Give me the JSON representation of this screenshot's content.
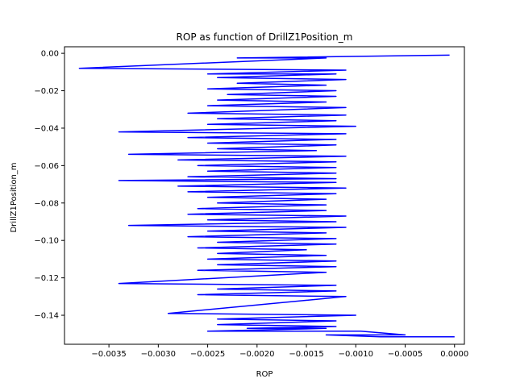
{
  "chart_data": {
    "type": "line",
    "title": "ROP as function of DrillZ1Position_m",
    "xlabel": "ROP",
    "ylabel": "DrillZ1Position_m",
    "xlim": [
      -0.00395,
      0.0001
    ],
    "ylim": [
      -0.1555,
      0.0035
    ],
    "grid": false,
    "line_color": "#0000ff",
    "x_ticks": [
      {
        "value": -0.0035,
        "label": "−0.0035"
      },
      {
        "value": -0.003,
        "label": "−0.0030"
      },
      {
        "value": -0.0025,
        "label": "−0.0025"
      },
      {
        "value": -0.002,
        "label": "−0.0020"
      },
      {
        "value": -0.0015,
        "label": "−0.0015"
      },
      {
        "value": -0.001,
        "label": "−0.0010"
      },
      {
        "value": -0.0005,
        "label": "−0.0005"
      },
      {
        "value": 0.0,
        "label": "0.0000"
      }
    ],
    "y_ticks": [
      {
        "value": 0.0,
        "label": "0.00"
      },
      {
        "value": -0.02,
        "label": "−0.02"
      },
      {
        "value": -0.04,
        "label": "−0.04"
      },
      {
        "value": -0.06,
        "label": "−0.06"
      },
      {
        "value": -0.08,
        "label": "−0.08"
      },
      {
        "value": -0.1,
        "label": "−0.10"
      },
      {
        "value": -0.12,
        "label": "−0.12"
      },
      {
        "value": -0.14,
        "label": "−0.14"
      }
    ],
    "series": [
      {
        "x": [
          -5e-05,
          -0.0022,
          -0.0013,
          -0.0038,
          -0.0011,
          -0.0025,
          -0.0012,
          -0.0024,
          -0.0011,
          -0.0022,
          -0.0013,
          -0.0025,
          -0.0012,
          -0.0023,
          -0.0012,
          -0.0024,
          -0.0013,
          -0.0025,
          -0.0011,
          -0.0027,
          -0.0011,
          -0.0024,
          -0.0012,
          -0.0025,
          -0.001,
          -0.0034,
          -0.0011,
          -0.0027,
          -0.0012,
          -0.0025,
          -0.0012,
          -0.0024,
          -0.0014,
          -0.0033,
          -0.0011,
          -0.0028,
          -0.0012,
          -0.0026,
          -0.0012,
          -0.0025,
          -0.0012,
          -0.0027,
          -0.0012,
          -0.0034,
          -0.0012,
          -0.0028,
          -0.0011,
          -0.0027,
          -0.0012,
          -0.0025,
          -0.0013,
          -0.0024,
          -0.0013,
          -0.0026,
          -0.0013,
          -0.0027,
          -0.0011,
          -0.0025,
          -0.0012,
          -0.0033,
          -0.0011,
          -0.0025,
          -0.0013,
          -0.0027,
          -0.0012,
          -0.0024,
          -0.0012,
          -0.0026,
          -0.0015,
          -0.0024,
          -0.0013,
          -0.0025,
          -0.0012,
          -0.0024,
          -0.0012,
          -0.0026,
          -0.0013,
          -0.0034,
          -0.0012,
          -0.0024,
          -0.0012,
          -0.0026,
          -0.0011,
          -0.0029,
          -0.001,
          -0.0024,
          -0.0012,
          -0.0024,
          -0.0012,
          -0.0021,
          -0.0013,
          -0.0025,
          -0.00095,
          -0.0005,
          -0.0013,
          -0.00075,
          -0.0
        ],
        "y": [
          -0.001,
          -0.0025,
          -0.0025,
          -0.008,
          -0.009,
          -0.011,
          -0.011,
          -0.013,
          -0.014,
          -0.016,
          -0.017,
          -0.019,
          -0.02,
          -0.022,
          -0.023,
          -0.025,
          -0.026,
          -0.028,
          -0.029,
          -0.032,
          -0.033,
          -0.035,
          -0.036,
          -0.038,
          -0.039,
          -0.042,
          -0.043,
          -0.045,
          -0.046,
          -0.048,
          -0.049,
          -0.051,
          -0.052,
          -0.054,
          -0.055,
          -0.057,
          -0.058,
          -0.06,
          -0.061,
          -0.063,
          -0.064,
          -0.066,
          -0.067,
          -0.068,
          -0.069,
          -0.071,
          -0.072,
          -0.074,
          -0.075,
          -0.077,
          -0.078,
          -0.08,
          -0.081,
          -0.083,
          -0.084,
          -0.086,
          -0.087,
          -0.089,
          -0.09,
          -0.092,
          -0.093,
          -0.095,
          -0.096,
          -0.098,
          -0.099,
          -0.101,
          -0.102,
          -0.104,
          -0.105,
          -0.107,
          -0.108,
          -0.11,
          -0.111,
          -0.113,
          -0.114,
          -0.116,
          -0.117,
          -0.123,
          -0.124,
          -0.126,
          -0.127,
          -0.129,
          -0.13,
          -0.139,
          -0.14,
          -0.142,
          -0.143,
          -0.145,
          -0.146,
          -0.147,
          -0.147,
          -0.1485,
          -0.1485,
          -0.1505,
          -0.1505,
          -0.1515,
          -0.1515
        ]
      }
    ]
  }
}
